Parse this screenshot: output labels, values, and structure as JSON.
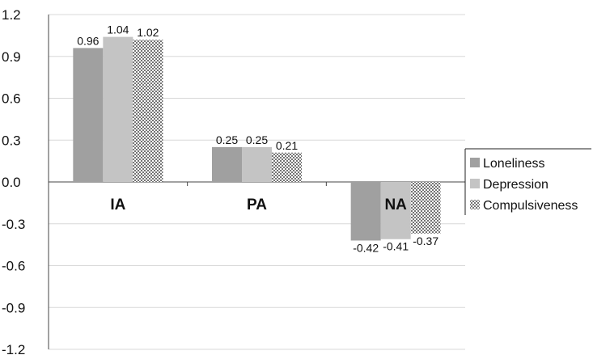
{
  "chart_data": {
    "type": "bar",
    "title": "",
    "xlabel": "",
    "ylabel": "",
    "categories": [
      "IA",
      "PA",
      "NA"
    ],
    "ylim": [
      -1.2,
      1.2
    ],
    "yticks": [
      "1.2",
      "0.9",
      "0.6",
      "0.3",
      "0.0",
      "-0.3",
      "-0.6",
      "-0.9",
      "-1.2"
    ],
    "grid": true,
    "legend_position": "right",
    "series": [
      {
        "name": "Loneliness",
        "values": [
          0.96,
          0.25,
          -0.42
        ],
        "labels": [
          "0.96",
          "0.25",
          "-0.42"
        ],
        "color": "#a0a0a0",
        "pattern": "solid"
      },
      {
        "name": "Depression",
        "values": [
          1.04,
          0.25,
          -0.41
        ],
        "labels": [
          "1.04",
          "0.25",
          "-0.41"
        ],
        "color": "#c4c4c4",
        "pattern": "solid"
      },
      {
        "name": "Compulsiveness",
        "values": [
          1.02,
          0.21,
          -0.37
        ],
        "labels": [
          "1.02",
          "0.21",
          "-0.37"
        ],
        "color": "#e2e2e2",
        "pattern": "dotted"
      }
    ]
  }
}
